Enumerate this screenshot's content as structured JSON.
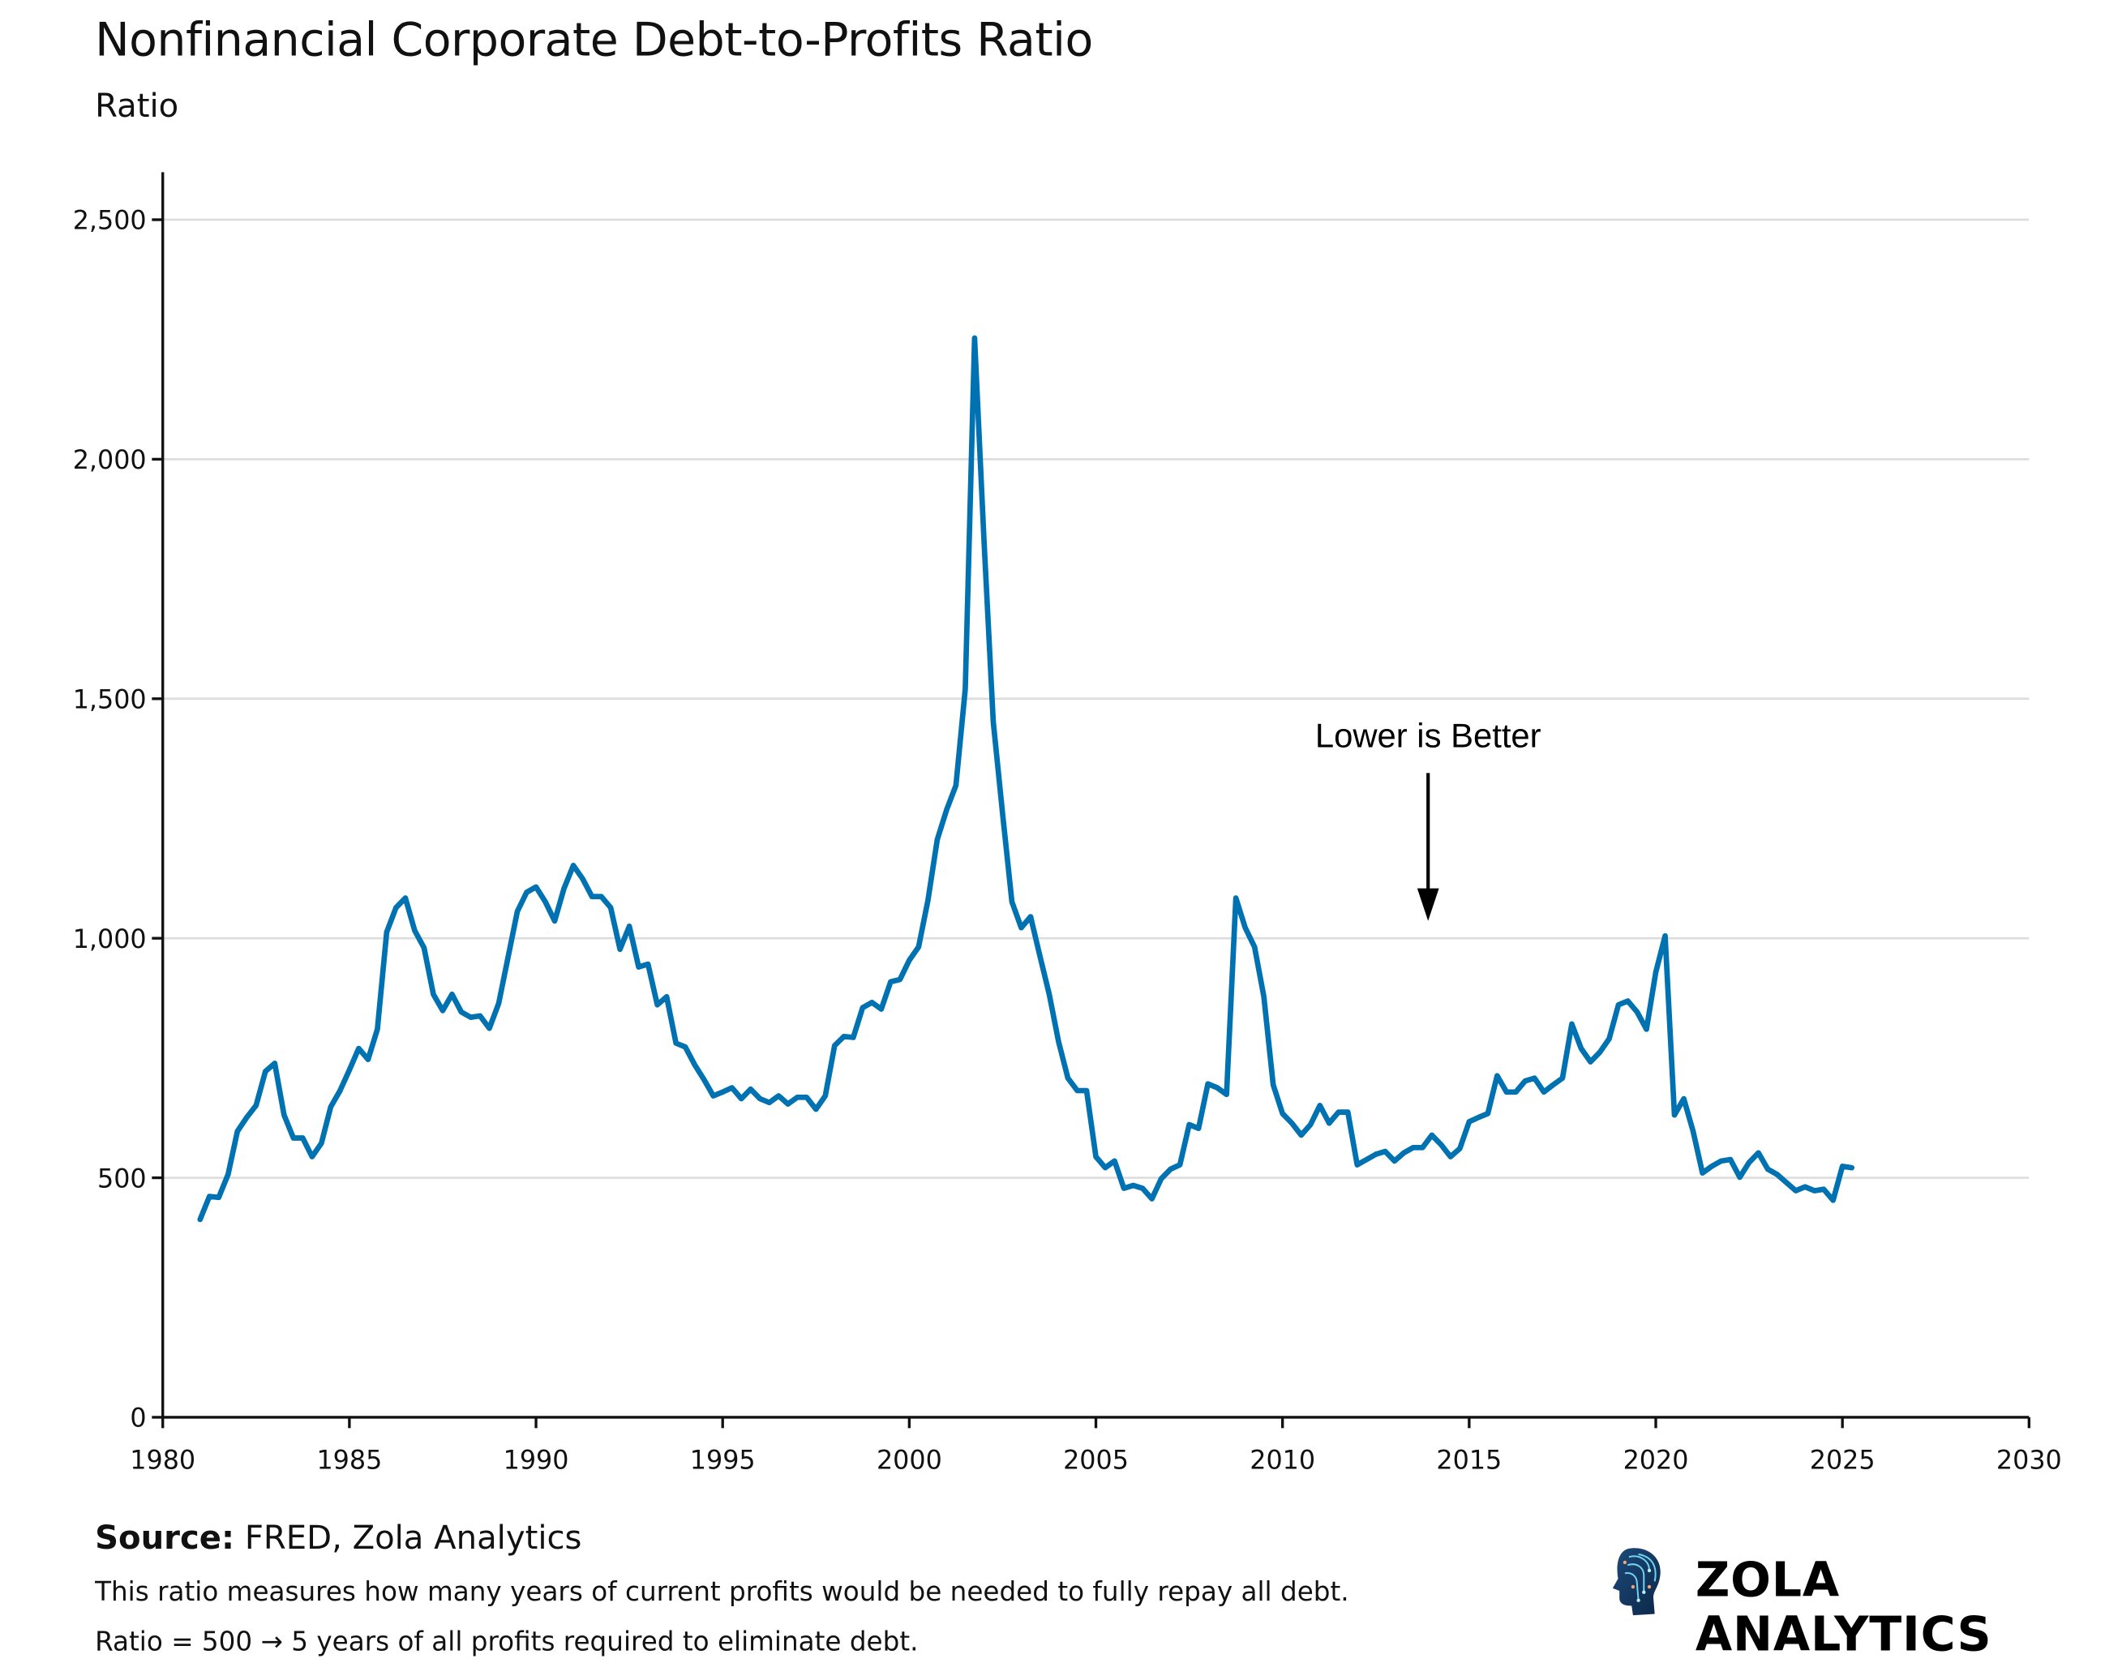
{
  "header": {
    "title": "Nonfinancial Corporate Debt-to-Profits Ratio",
    "subtitle": "Ratio"
  },
  "footer": {
    "source_label": "Source:",
    "source_text": "FRED, Zola Analytics",
    "note1": "This ratio measures how many years of current profits would be needed to fully repay all debt.",
    "note2": "Ratio = 500 → 5 years of all profits required to eliminate debt.",
    "brand": "ZOLA ANALYTICS"
  },
  "colors": {
    "line": "#0072b2",
    "grid": "#dddddd",
    "axis": "#111111"
  },
  "chart_data": {
    "type": "line",
    "title": "Nonfinancial Corporate Debt-to-Profits Ratio",
    "ylabel": "Ratio",
    "xlabel": "",
    "xlim": [
      1980,
      2030
    ],
    "ylim": [
      0,
      2600
    ],
    "xticks": [
      1980,
      1985,
      1990,
      1995,
      2000,
      2005,
      2010,
      2015,
      2020,
      2025,
      2030
    ],
    "xtick_labels": [
      "1980",
      "1985",
      "1990",
      "1995",
      "2000",
      "2005",
      "2010",
      "2015",
      "2020",
      "2025",
      "2030"
    ],
    "yticks": [
      0,
      500,
      1000,
      1500,
      2000,
      2500
    ],
    "ytick_labels": [
      "0",
      "500",
      "1,000",
      "1,500",
      "2,000",
      "2,500"
    ],
    "grid": "horizontal",
    "annotation": {
      "text": "Lower is Better",
      "x": 2013.9,
      "arrow_from": 1350,
      "arrow_to": 1030
    },
    "series": [
      {
        "name": "Debt-to-Profits Ratio",
        "x_start": 1981.0,
        "x_step": 0.25,
        "values": [
          413,
          461,
          459,
          507,
          597,
          626,
          651,
          722,
          739,
          631,
          583,
          583,
          544,
          572,
          648,
          682,
          725,
          770,
          747,
          810,
          1013,
          1064,
          1084,
          1016,
          980,
          883,
          849,
          883,
          846,
          835,
          838,
          812,
          864,
          960,
          1056,
          1096,
          1107,
          1076,
          1036,
          1104,
          1152,
          1124,
          1087,
          1087,
          1064,
          977,
          1025,
          940,
          946,
          861,
          878,
          781,
          773,
          736,
          705,
          671,
          679,
          688,
          665,
          685,
          665,
          657,
          671,
          654,
          668,
          668,
          643,
          671,
          776,
          795,
          793,
          855,
          866,
          852,
          909,
          914,
          954,
          982,
          1079,
          1206,
          1268,
          1319,
          1520,
          2253,
          1834,
          1452,
          1260,
          1076,
          1022,
          1045,
          963,
          883,
          784,
          708,
          682,
          682,
          544,
          521,
          535,
          478,
          484,
          478,
          456,
          498,
          518,
          527,
          611,
          603,
          696,
          688,
          674,
          1084,
          1022,
          982,
          878,
          694,
          634,
          614,
          589,
          611,
          651,
          614,
          637,
          637,
          527,
          538,
          549,
          555,
          535,
          552,
          563,
          563,
          589,
          569,
          544,
          561,
          617,
          626,
          634,
          713,
          679,
          679,
          702,
          708,
          679,
          694,
          708,
          821,
          770,
          742,
          762,
          790,
          861,
          869,
          846,
          810,
          929,
          1005,
          631,
          665,
          597,
          510,
          524,
          535,
          538,
          501,
          532,
          552,
          518,
          507,
          490,
          473,
          481,
          473,
          476,
          453,
          524,
          521
        ]
      }
    ]
  }
}
